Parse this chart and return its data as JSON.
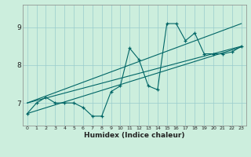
{
  "xlabel": "Humidex (Indice chaleur)",
  "bg_color": "#cceedd",
  "grid_color": "#99cccc",
  "line_color": "#006666",
  "spine_color": "#888888",
  "xlim": [
    -0.5,
    23.5
  ],
  "ylim": [
    6.4,
    9.6
  ],
  "ytick_positions": [
    7,
    8,
    9
  ],
  "ytick_labels": [
    "7",
    "8",
    "9"
  ],
  "xtick_labels": [
    "0",
    "1",
    "2",
    "3",
    "4",
    "5",
    "6",
    "7",
    "8",
    "9",
    "10",
    "11",
    "12",
    "13",
    "14",
    "15",
    "16",
    "17",
    "18",
    "19",
    "20",
    "21",
    "22",
    "23"
  ],
  "scatter_x": [
    0,
    1,
    2,
    3,
    4,
    5,
    6,
    7,
    8,
    9,
    10,
    11,
    12,
    13,
    14,
    15,
    16,
    17,
    18,
    19,
    20,
    21,
    22,
    23
  ],
  "scatter_y": [
    6.72,
    7.0,
    7.15,
    7.0,
    7.0,
    7.0,
    6.88,
    6.65,
    6.65,
    7.3,
    7.45,
    8.45,
    8.15,
    7.45,
    7.35,
    9.1,
    9.1,
    8.65,
    8.85,
    8.3,
    8.3,
    8.3,
    8.35,
    8.5
  ],
  "line1_x": [
    0,
    23
  ],
  "line1_y": [
    7.0,
    8.5
  ],
  "line2_x": [
    0,
    23
  ],
  "line2_y": [
    7.0,
    9.1
  ],
  "line3_x": [
    0,
    23
  ],
  "line3_y": [
    6.72,
    8.48
  ]
}
